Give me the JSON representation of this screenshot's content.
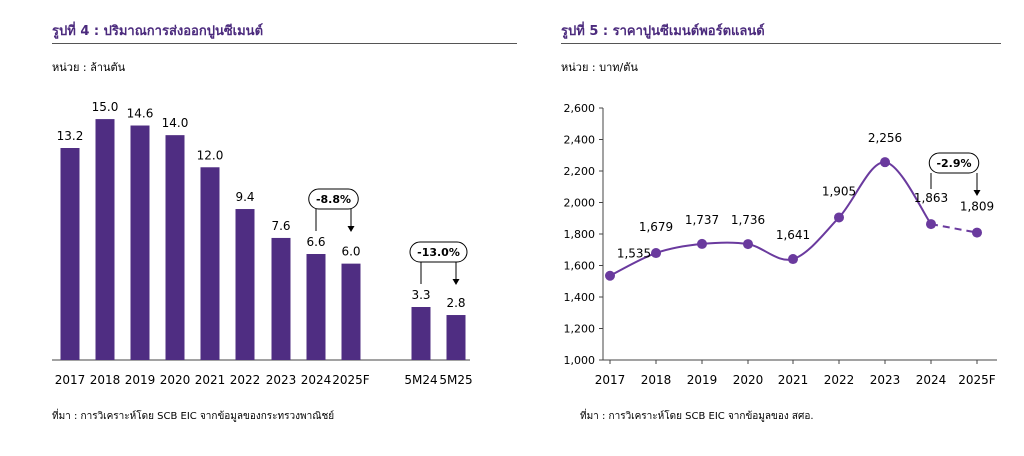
{
  "colors": {
    "accent": "#4b2a7d",
    "bar": "#4f2d82",
    "line": "#6a3a9e"
  },
  "chart_data": [
    {
      "type": "bar",
      "title": "รูปที่ 4 : ปริมาณการส่งออกปูนซีเมนต์",
      "unit_label": "หน่วย : ล้านตัน",
      "source": "ที่มา : การวิเคราะห์โดย SCB EIC จากข้อมูลของกระทรวงพาณิชย์",
      "categories": [
        "2017",
        "2018",
        "2019",
        "2020",
        "2021",
        "2022",
        "2023",
        "2024",
        "2025F",
        "5M24",
        "5M25"
      ],
      "values": [
        13.2,
        15.0,
        14.6,
        14.0,
        12.0,
        9.4,
        7.6,
        6.6,
        6.0,
        3.3,
        2.8
      ],
      "value_labels": [
        "13.2",
        "15.0",
        "14.6",
        "14.0",
        "12.0",
        "9.4",
        "7.6",
        "6.6",
        "6.0",
        "3.3",
        "2.8"
      ],
      "ylim": [
        0,
        16.5
      ],
      "annotations": [
        {
          "text": "-8.8%",
          "from": "2024",
          "to": "2025F"
        },
        {
          "text": "-13.0%",
          "from": "5M24",
          "to": "5M25"
        }
      ]
    },
    {
      "type": "line",
      "title": "รูปที่ 5 : ราคาปูนซีเมนต์พอร์ตแลนด์",
      "unit_label": "หน่วย : บาท/ตัน",
      "source": "ที่มา : การวิเคราะห์โดย SCB EIC จากข้อมูลของ สศอ.",
      "x": [
        "2017",
        "2018",
        "2019",
        "2020",
        "2021",
        "2022",
        "2023",
        "2024",
        "2025F"
      ],
      "values": [
        1535,
        1679,
        1737,
        1736,
        1641,
        1905,
        2256,
        1863,
        1809
      ],
      "value_labels": [
        "1,535",
        "1,679",
        "1,737",
        "1,736",
        "1,641",
        "1,905",
        "2,256",
        "1,863",
        "1,809"
      ],
      "ylim": [
        1000,
        2600
      ],
      "yticks": [
        1000,
        1200,
        1400,
        1600,
        1800,
        2000,
        2200,
        2400,
        2600
      ],
      "ytick_labels": [
        "1,000",
        "1,200",
        "1,400",
        "1,600",
        "1,800",
        "2,000",
        "2,200",
        "2,400",
        "2,600"
      ],
      "dashed_from": "2024",
      "annotations": [
        {
          "text": "-2.9%",
          "from": "2024",
          "to": "2025F"
        }
      ]
    }
  ]
}
